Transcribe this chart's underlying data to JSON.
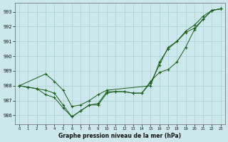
{
  "title": "Graphe pression niveau de la mer (hPa)",
  "background_color": "#cce8ec",
  "grid_color": "#aacfd5",
  "line_color": "#1a5c1a",
  "xlim": [
    -0.5,
    23.5
  ],
  "ylim": [
    985.4,
    993.6
  ],
  "yticks": [
    986,
    987,
    988,
    989,
    990,
    991,
    992,
    993
  ],
  "xticks": [
    0,
    1,
    2,
    3,
    4,
    5,
    6,
    7,
    8,
    9,
    10,
    11,
    12,
    13,
    14,
    15,
    16,
    17,
    18,
    19,
    20,
    21,
    22,
    23
  ],
  "series1_x": [
    0,
    1,
    2,
    3,
    4,
    5,
    6,
    7,
    8,
    9,
    10,
    11,
    12,
    13,
    14,
    15,
    16,
    17,
    18,
    19,
    20,
    21,
    22,
    23
  ],
  "series1": [
    988.0,
    987.9,
    987.8,
    987.7,
    987.5,
    986.7,
    985.9,
    986.3,
    986.7,
    986.8,
    987.6,
    987.6,
    987.6,
    987.5,
    987.5,
    988.3,
    988.9,
    989.1,
    989.6,
    990.6,
    991.8,
    992.5,
    993.1,
    993.2
  ],
  "series2_x": [
    0,
    3,
    4,
    5,
    6,
    7,
    8,
    9,
    10,
    15,
    16,
    17,
    18,
    19,
    20,
    21,
    22,
    23
  ],
  "series2": [
    988.0,
    988.8,
    988.3,
    987.7,
    986.6,
    986.7,
    987.0,
    987.4,
    987.7,
    988.0,
    989.6,
    990.5,
    991.0,
    991.6,
    991.9,
    992.5,
    993.1,
    993.2
  ],
  "series3_x": [
    0,
    1,
    2,
    3,
    4,
    5,
    6,
    7,
    8,
    9,
    10,
    11,
    12,
    13,
    14,
    15,
    16,
    17,
    18,
    19,
    20,
    21,
    22,
    23
  ],
  "series3": [
    988.0,
    987.9,
    987.8,
    987.4,
    987.2,
    986.5,
    985.9,
    986.3,
    986.7,
    986.7,
    987.5,
    987.6,
    987.6,
    987.5,
    987.5,
    988.2,
    989.4,
    990.6,
    991.0,
    991.7,
    992.1,
    992.7,
    993.1,
    993.2
  ]
}
